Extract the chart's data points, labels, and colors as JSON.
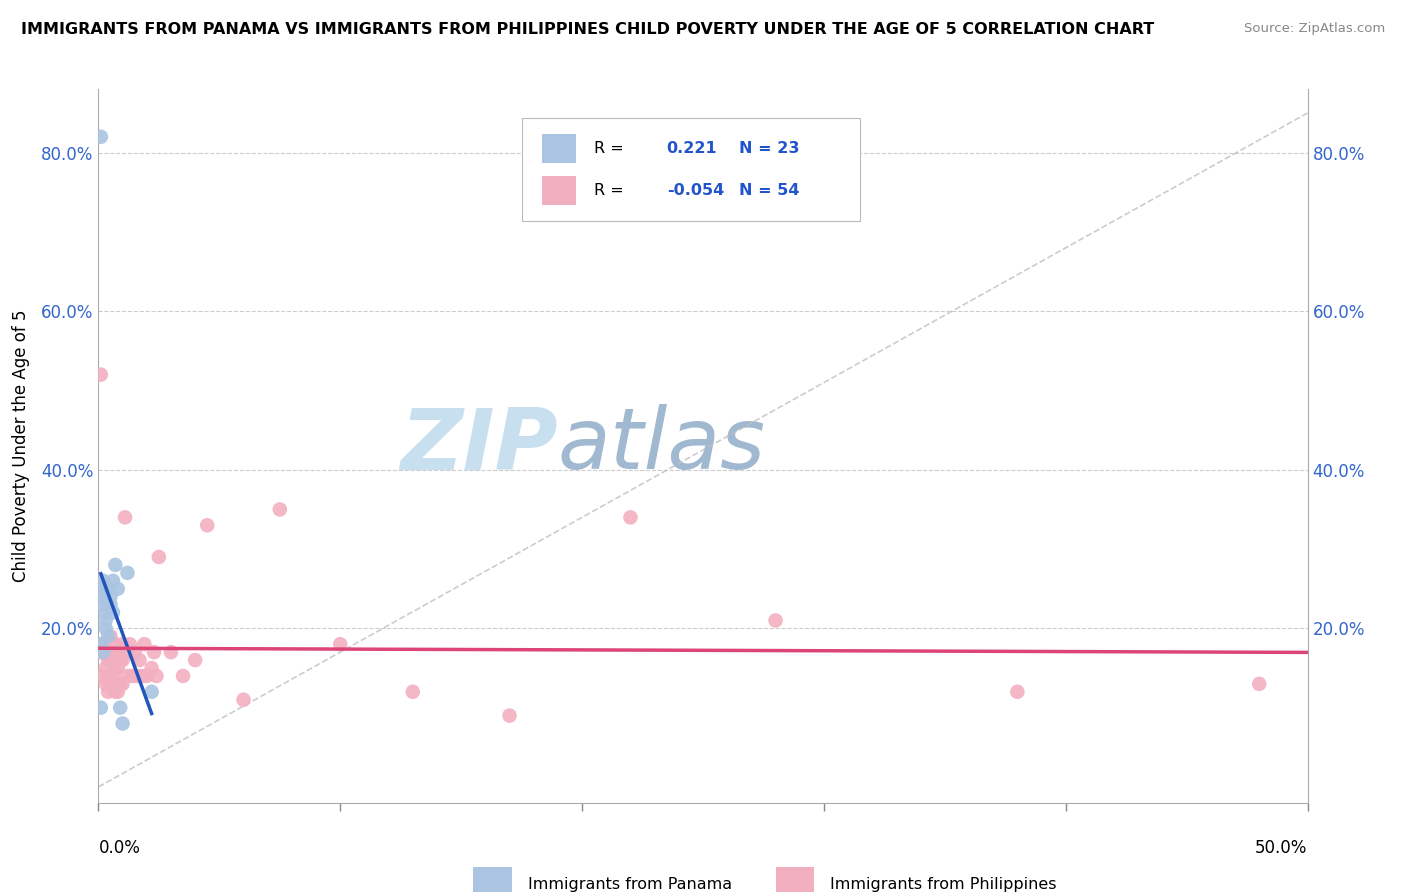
{
  "title": "IMMIGRANTS FROM PANAMA VS IMMIGRANTS FROM PHILIPPINES CHILD POVERTY UNDER THE AGE OF 5 CORRELATION CHART",
  "source": "Source: ZipAtlas.com",
  "ylabel": "Child Poverty Under the Age of 5",
  "y_ticks": [
    0.0,
    0.2,
    0.4,
    0.6,
    0.8
  ],
  "y_tick_labels": [
    "",
    "20.0%",
    "40.0%",
    "60.0%",
    "80.0%"
  ],
  "xlim": [
    0.0,
    0.5
  ],
  "ylim": [
    -0.02,
    0.88
  ],
  "panama_R": 0.221,
  "panama_N": 23,
  "philippines_R": -0.054,
  "philippines_N": 54,
  "panama_color": "#aac4e2",
  "philippines_color": "#f2afc0",
  "panama_line_color": "#2255bb",
  "philippines_line_color": "#dd4477",
  "dashed_line_color": "#c0c0c0",
  "watermark_zip_color": "#c8dff0",
  "watermark_atlas_color": "#a0b8d0",
  "panama_x": [
    0.001,
    0.001,
    0.001,
    0.002,
    0.002,
    0.002,
    0.002,
    0.002,
    0.003,
    0.003,
    0.003,
    0.004,
    0.004,
    0.005,
    0.005,
    0.006,
    0.006,
    0.007,
    0.008,
    0.009,
    0.01,
    0.012,
    0.022
  ],
  "panama_y": [
    0.82,
    0.18,
    0.1,
    0.26,
    0.25,
    0.24,
    0.23,
    0.17,
    0.22,
    0.21,
    0.2,
    0.19,
    0.25,
    0.24,
    0.23,
    0.26,
    0.22,
    0.28,
    0.25,
    0.1,
    0.08,
    0.27,
    0.12
  ],
  "philippines_x": [
    0.001,
    0.001,
    0.002,
    0.002,
    0.003,
    0.003,
    0.003,
    0.004,
    0.004,
    0.004,
    0.005,
    0.005,
    0.005,
    0.006,
    0.006,
    0.007,
    0.007,
    0.007,
    0.008,
    0.008,
    0.008,
    0.009,
    0.009,
    0.01,
    0.01,
    0.01,
    0.011,
    0.012,
    0.012,
    0.013,
    0.014,
    0.015,
    0.016,
    0.017,
    0.018,
    0.019,
    0.02,
    0.022,
    0.023,
    0.024,
    0.025,
    0.03,
    0.035,
    0.04,
    0.045,
    0.06,
    0.075,
    0.1,
    0.13,
    0.17,
    0.22,
    0.28,
    0.38,
    0.48
  ],
  "philippines_y": [
    0.52,
    0.17,
    0.18,
    0.14,
    0.17,
    0.15,
    0.13,
    0.16,
    0.14,
    0.12,
    0.19,
    0.16,
    0.13,
    0.17,
    0.14,
    0.18,
    0.15,
    0.12,
    0.17,
    0.15,
    0.12,
    0.16,
    0.13,
    0.18,
    0.16,
    0.13,
    0.34,
    0.17,
    0.14,
    0.18,
    0.14,
    0.17,
    0.14,
    0.16,
    0.14,
    0.18,
    0.14,
    0.15,
    0.17,
    0.14,
    0.29,
    0.17,
    0.14,
    0.16,
    0.33,
    0.11,
    0.35,
    0.18,
    0.12,
    0.09,
    0.34,
    0.21,
    0.12,
    0.13
  ]
}
